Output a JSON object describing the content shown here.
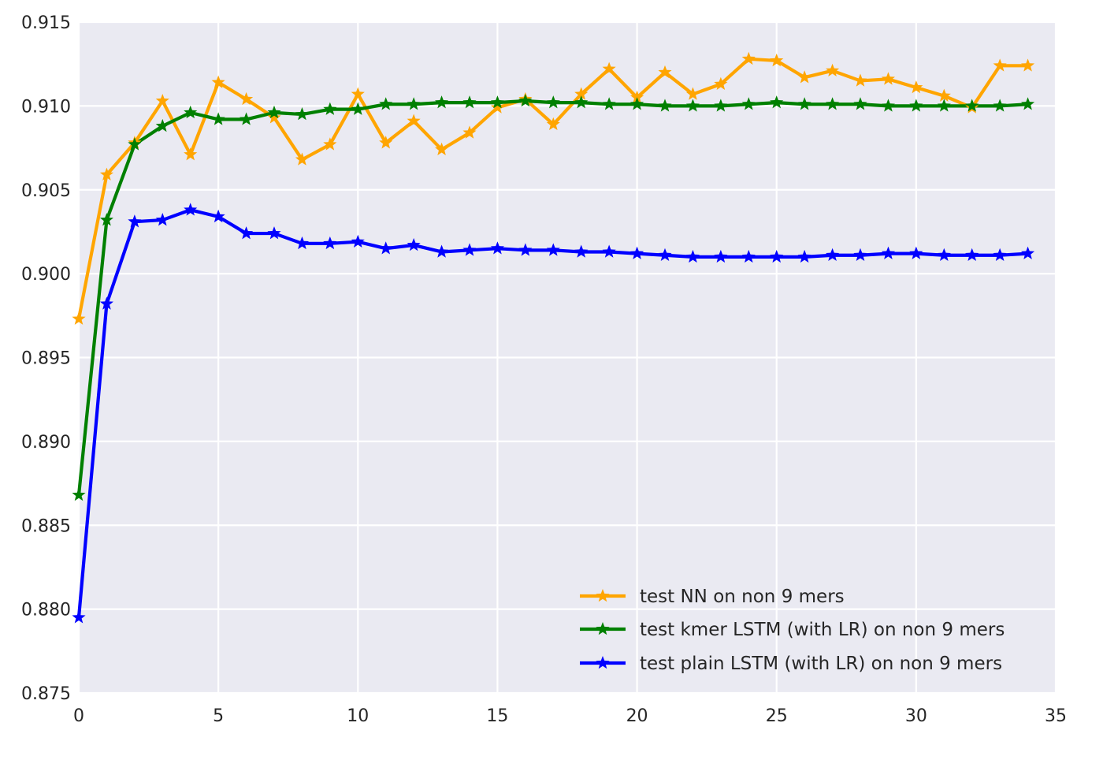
{
  "chart_data": {
    "type": "line",
    "title": "",
    "xlabel": "",
    "ylabel": "",
    "xlim": [
      0,
      35
    ],
    "ylim": [
      0.875,
      0.915
    ],
    "xticks": [
      "0",
      "5",
      "10",
      "15",
      "20",
      "25",
      "30",
      "35"
    ],
    "yticks": [
      "0.875",
      "0.880",
      "0.885",
      "0.890",
      "0.895",
      "0.900",
      "0.905",
      "0.910",
      "0.915"
    ],
    "grid": true,
    "legend_position": "lower-right",
    "background": "#EAEAF2",
    "marker": "star",
    "series": [
      {
        "name": "test NN on non 9 mers",
        "color": "#FFA500",
        "x": [
          0,
          1,
          2,
          3,
          4,
          5,
          6,
          7,
          8,
          9,
          10,
          11,
          12,
          13,
          14,
          15,
          16,
          17,
          18,
          19,
          20,
          21,
          22,
          23,
          24,
          25,
          26,
          27,
          28,
          29,
          30,
          31,
          32,
          33,
          34
        ],
        "values": [
          0.8973,
          0.9059,
          0.9078,
          0.9103,
          0.9071,
          0.9114,
          0.9104,
          0.9093,
          0.9068,
          0.9077,
          0.9107,
          0.9078,
          0.9091,
          0.9074,
          0.9084,
          0.9099,
          0.9104,
          0.9089,
          0.9107,
          0.9122,
          0.9105,
          0.912,
          0.9107,
          0.9113,
          0.9128,
          0.9127,
          0.9117,
          0.9121,
          0.9115,
          0.9116,
          0.9111,
          0.9106,
          0.9099,
          0.9124,
          0.9124
        ]
      },
      {
        "name": "test kmer LSTM (with LR) on non 9 mers",
        "color": "#008000",
        "x": [
          0,
          1,
          2,
          3,
          4,
          5,
          6,
          7,
          8,
          9,
          10,
          11,
          12,
          13,
          14,
          15,
          16,
          17,
          18,
          19,
          20,
          21,
          22,
          23,
          24,
          25,
          26,
          27,
          28,
          29,
          30,
          31,
          32,
          33,
          34
        ],
        "values": [
          0.8868,
          0.9032,
          0.9077,
          0.9088,
          0.9096,
          0.9092,
          0.9092,
          0.9096,
          0.9095,
          0.9098,
          0.9098,
          0.9101,
          0.9101,
          0.9102,
          0.9102,
          0.9102,
          0.9103,
          0.9102,
          0.9102,
          0.9101,
          0.9101,
          0.91,
          0.91,
          0.91,
          0.9101,
          0.9102,
          0.9101,
          0.9101,
          0.9101,
          0.91,
          0.91,
          0.91,
          0.91,
          0.91,
          0.9101
        ]
      },
      {
        "name": "test plain LSTM (with LR) on non 9 mers",
        "color": "#0000FF",
        "x": [
          0,
          1,
          2,
          3,
          4,
          5,
          6,
          7,
          8,
          9,
          10,
          11,
          12,
          13,
          14,
          15,
          16,
          17,
          18,
          19,
          20,
          21,
          22,
          23,
          24,
          25,
          26,
          27,
          28,
          29,
          30,
          31,
          32,
          33,
          34
        ],
        "values": [
          0.8795,
          0.8982,
          0.9031,
          0.9032,
          0.9038,
          0.9034,
          0.9024,
          0.9024,
          0.9018,
          0.9018,
          0.9019,
          0.9015,
          0.9017,
          0.9013,
          0.9014,
          0.9015,
          0.9014,
          0.9014,
          0.9013,
          0.9013,
          0.9012,
          0.9011,
          0.901,
          0.901,
          0.901,
          0.901,
          0.901,
          0.9011,
          0.9011,
          0.9012,
          0.9012,
          0.9011,
          0.9011,
          0.9011,
          0.9012
        ]
      }
    ]
  }
}
